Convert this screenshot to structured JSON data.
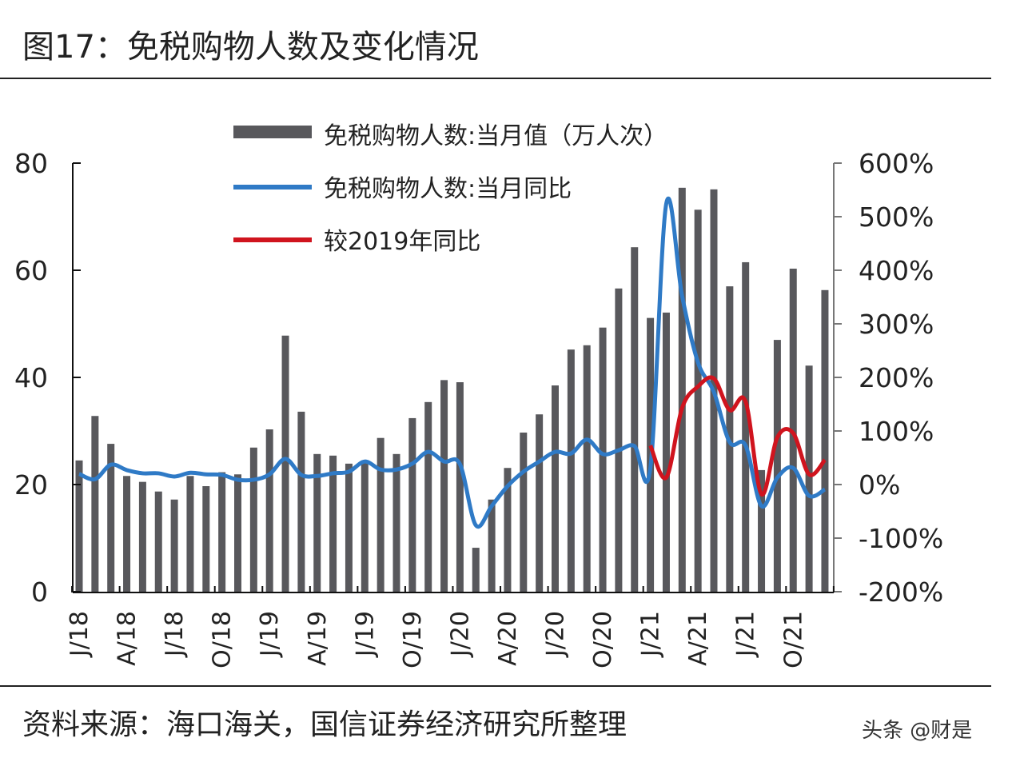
{
  "title": "图17：免税购物人数及变化情况",
  "source": "资料来源：海口海关，国信证券经济研究所整理",
  "watermark": "头条 @财是",
  "colors": {
    "bars": "#58585c",
    "yoy": "#2f7ac6",
    "vs2019": "#d0141e"
  },
  "chart_data": {
    "type": "bar+line",
    "title": "",
    "legend": [
      "免税购物人数:当月值（万人次）",
      "免税购物人数:当月同比",
      "较2019年同比"
    ],
    "legend_position": "top-center",
    "grid": false,
    "x_tick_labels": [
      "J/18",
      "A/18",
      "J/18",
      "O/18",
      "J/19",
      "A/19",
      "J/19",
      "O/19",
      "J/20",
      "A/20",
      "J/20",
      "O/20",
      "J/21",
      "A/21",
      "J/21",
      "O/21"
    ],
    "months": [
      "2018-01",
      "2018-02",
      "2018-03",
      "2018-04",
      "2018-05",
      "2018-06",
      "2018-07",
      "2018-08",
      "2018-09",
      "2018-10",
      "2018-11",
      "2018-12",
      "2019-01",
      "2019-02",
      "2019-03",
      "2019-04",
      "2019-05",
      "2019-06",
      "2019-07",
      "2019-08",
      "2019-09",
      "2019-10",
      "2019-11",
      "2019-12",
      "2020-01",
      "2020-02",
      "2020-03",
      "2020-04",
      "2020-05",
      "2020-06",
      "2020-07",
      "2020-08",
      "2020-09",
      "2020-10",
      "2020-11",
      "2020-12",
      "2021-01",
      "2021-02",
      "2021-03",
      "2021-04",
      "2021-05",
      "2021-06",
      "2021-07",
      "2021-08",
      "2021-09",
      "2021-10",
      "2021-11",
      "2021-12"
    ],
    "left_axis": {
      "range": [
        0,
        80
      ],
      "ticks": [
        "0",
        "20",
        "40",
        "60",
        "80"
      ]
    },
    "right_axis": {
      "range": [
        -200,
        600
      ],
      "ticks": [
        "-200%",
        "-100%",
        "0%",
        "100%",
        "200%",
        "300%",
        "400%",
        "500%",
        "600%"
      ]
    },
    "series": [
      {
        "name": "免税购物人数:当月值（万人次）",
        "type": "bar",
        "axis": "left",
        "values": [
          24.5,
          32.8,
          27.6,
          21.6,
          20.5,
          18.7,
          17.2,
          21.6,
          19.7,
          22.3,
          21.9,
          26.9,
          30.3,
          47.8,
          33.6,
          25.7,
          25.4,
          23.9,
          24.5,
          28.7,
          25.7,
          32.4,
          35.4,
          39.5,
          39.1,
          8.2,
          17.2,
          23.1,
          29.7,
          33.1,
          38.5,
          45.2,
          46.0,
          49.3,
          56.6,
          64.3,
          51.1,
          52.1,
          75.4,
          71.3,
          75.1,
          57.0,
          61.5,
          22.7,
          47.0,
          60.3,
          42.2,
          56.3
        ]
      },
      {
        "name": "免税购物人数:当月同比",
        "type": "line",
        "axis": "right",
        "unit": "%",
        "values": [
          20,
          10,
          37,
          27,
          21,
          21,
          15,
          22,
          19,
          18,
          9,
          9,
          19,
          48,
          18,
          16,
          21,
          24,
          43,
          28,
          28,
          39,
          61,
          43,
          38,
          -76,
          -40,
          -3,
          24,
          43,
          61,
          58,
          84,
          57,
          64,
          72,
          31,
          524,
          352,
          228,
          173,
          79,
          73,
          -40,
          13,
          31,
          -21,
          -9
        ]
      },
      {
        "name": "较2019年同比",
        "type": "line",
        "axis": "right",
        "unit": "%",
        "values": [
          null,
          null,
          null,
          null,
          null,
          null,
          null,
          null,
          null,
          null,
          null,
          null,
          null,
          null,
          null,
          null,
          null,
          null,
          null,
          null,
          null,
          null,
          null,
          null,
          null,
          null,
          null,
          null,
          null,
          null,
          null,
          null,
          null,
          null,
          null,
          null,
          73,
          13,
          143,
          183,
          198,
          139,
          155,
          -18,
          88,
          96,
          19,
          46
        ]
      }
    ]
  }
}
